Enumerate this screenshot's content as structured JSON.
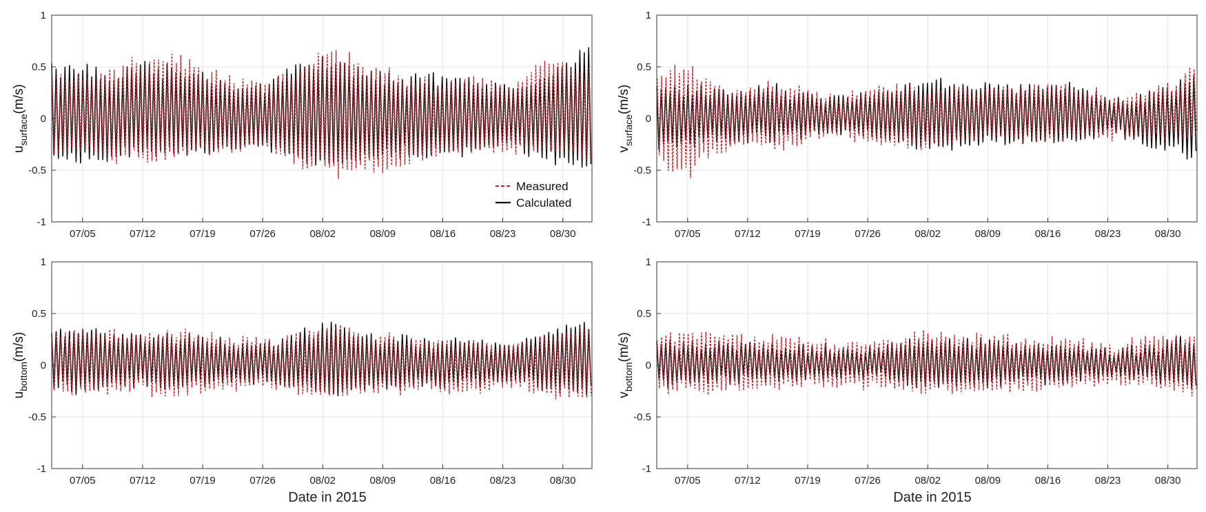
{
  "colors": {
    "measured": "#c0242a",
    "calculated": "#111111",
    "grid": "#e3e3e3",
    "axis": "#333333"
  },
  "chart_data": [
    {
      "id": "u_surface",
      "type": "line",
      "ylabel_main": "u",
      "ylabel_sub": "surface",
      "ylabel_unit": "(m/s)",
      "xlabel": "",
      "ylim": [
        -1,
        1
      ],
      "yticks": [
        "1",
        "0.5",
        "0",
        "-0.5",
        "-1"
      ],
      "xticks": [
        "07/05",
        "07/12",
        "07/19",
        "07/26",
        "08/02",
        "08/09",
        "08/16",
        "08/23",
        "08/30"
      ],
      "x_start_day": 0.4,
      "x_end_day": 63.4,
      "envelope_calculated": [
        [
          0,
          0.52,
          -0.37
        ],
        [
          4,
          0.55,
          -0.45
        ],
        [
          8,
          0.45,
          -0.4
        ],
        [
          11,
          0.55,
          -0.35
        ],
        [
          15,
          0.52,
          -0.38
        ],
        [
          19,
          0.42,
          -0.35
        ],
        [
          25,
          0.3,
          -0.3
        ],
        [
          29,
          0.52,
          -0.4
        ],
        [
          33,
          0.62,
          -0.5
        ],
        [
          37,
          0.45,
          -0.42
        ],
        [
          42,
          0.42,
          -0.35
        ],
        [
          46,
          0.45,
          -0.35
        ],
        [
          50,
          0.38,
          -0.32
        ],
        [
          54,
          0.32,
          -0.25
        ],
        [
          58,
          0.45,
          -0.42
        ],
        [
          63,
          0.68,
          -0.48
        ]
      ],
      "envelope_measured": [
        [
          0,
          0.45,
          -0.35
        ],
        [
          4,
          0.42,
          -0.35
        ],
        [
          8,
          0.5,
          -0.42
        ],
        [
          11,
          0.6,
          -0.4
        ],
        [
          15,
          0.65,
          -0.4
        ],
        [
          19,
          0.45,
          -0.35
        ],
        [
          25,
          0.35,
          -0.3
        ],
        [
          29,
          0.5,
          -0.45
        ],
        [
          33,
          0.68,
          -0.58
        ],
        [
          37,
          0.55,
          -0.55
        ],
        [
          42,
          0.42,
          -0.45
        ],
        [
          46,
          0.35,
          -0.35
        ],
        [
          50,
          0.4,
          -0.35
        ],
        [
          54,
          0.3,
          -0.35
        ],
        [
          58,
          0.6,
          -0.3
        ],
        [
          63,
          0.5,
          -0.45
        ]
      ],
      "legend": {
        "position": "bottom-right",
        "measured": "Measured",
        "calculated": "Calculated"
      }
    },
    {
      "id": "v_surface",
      "type": "line",
      "ylabel_main": "v",
      "ylabel_sub": "surface",
      "ylabel_unit": "(m/s)",
      "xlabel": "",
      "ylim": [
        -1,
        1
      ],
      "yticks": [
        "1",
        "0.5",
        "0",
        "-0.5",
        "-1"
      ],
      "xticks": [
        "07/05",
        "07/12",
        "07/19",
        "07/26",
        "08/02",
        "08/09",
        "08/16",
        "08/23",
        "08/30"
      ],
      "x_start_day": 0.4,
      "x_end_day": 63.4,
      "envelope_calculated": [
        [
          0,
          0.32,
          -0.3
        ],
        [
          4,
          0.3,
          -0.25
        ],
        [
          9,
          0.3,
          -0.22
        ],
        [
          15,
          0.3,
          -0.2
        ],
        [
          21,
          0.2,
          -0.12
        ],
        [
          26,
          0.28,
          -0.2
        ],
        [
          32,
          0.38,
          -0.3
        ],
        [
          38,
          0.35,
          -0.25
        ],
        [
          44,
          0.32,
          -0.22
        ],
        [
          50,
          0.32,
          -0.22
        ],
        [
          54,
          0.18,
          -0.15
        ],
        [
          58,
          0.25,
          -0.3
        ],
        [
          63,
          0.42,
          -0.38
        ]
      ],
      "envelope_measured": [
        [
          0,
          0.45,
          -0.45
        ],
        [
          4,
          0.55,
          -0.55
        ],
        [
          9,
          0.28,
          -0.28
        ],
        [
          15,
          0.35,
          -0.28
        ],
        [
          21,
          0.2,
          -0.15
        ],
        [
          26,
          0.35,
          -0.25
        ],
        [
          32,
          0.3,
          -0.3
        ],
        [
          38,
          0.3,
          -0.2
        ],
        [
          44,
          0.35,
          -0.2
        ],
        [
          50,
          0.32,
          -0.18
        ],
        [
          54,
          0.2,
          -0.18
        ],
        [
          58,
          0.28,
          -0.2
        ],
        [
          63,
          0.5,
          -0.15
        ]
      ]
    },
    {
      "id": "u_bottom",
      "type": "line",
      "ylabel_main": "u",
      "ylabel_sub": "bottom",
      "ylabel_unit": "(m/s)",
      "xlabel": "Date in 2015",
      "ylim": [
        -1,
        1
      ],
      "yticks": [
        "1",
        "0.5",
        "0",
        "-0.5",
        "-1"
      ],
      "xticks": [
        "07/05",
        "07/12",
        "07/19",
        "07/26",
        "08/02",
        "08/09",
        "08/16",
        "08/23",
        "08/30"
      ],
      "x_start_day": 0.4,
      "x_end_day": 63.4,
      "envelope_calculated": [
        [
          0,
          0.35,
          -0.22
        ],
        [
          4,
          0.42,
          -0.25
        ],
        [
          9,
          0.3,
          -0.2
        ],
        [
          14,
          0.33,
          -0.22
        ],
        [
          20,
          0.25,
          -0.18
        ],
        [
          25,
          0.2,
          -0.15
        ],
        [
          29,
          0.33,
          -0.25
        ],
        [
          33,
          0.43,
          -0.3
        ],
        [
          38,
          0.3,
          -0.25
        ],
        [
          44,
          0.25,
          -0.2
        ],
        [
          50,
          0.25,
          -0.2
        ],
        [
          54,
          0.18,
          -0.15
        ],
        [
          58,
          0.3,
          -0.25
        ],
        [
          63,
          0.45,
          -0.27
        ]
      ],
      "envelope_measured": [
        [
          0,
          0.3,
          -0.25
        ],
        [
          4,
          0.35,
          -0.28
        ],
        [
          9,
          0.3,
          -0.25
        ],
        [
          14,
          0.35,
          -0.28
        ],
        [
          20,
          0.3,
          -0.25
        ],
        [
          25,
          0.25,
          -0.2
        ],
        [
          29,
          0.3,
          -0.28
        ],
        [
          33,
          0.4,
          -0.32
        ],
        [
          38,
          0.3,
          -0.28
        ],
        [
          44,
          0.25,
          -0.25
        ],
        [
          50,
          0.25,
          -0.25
        ],
        [
          54,
          0.22,
          -0.2
        ],
        [
          58,
          0.3,
          -0.3
        ],
        [
          63,
          0.38,
          -0.35
        ]
      ]
    },
    {
      "id": "v_bottom",
      "type": "line",
      "ylabel_main": "v",
      "ylabel_sub": "bottom",
      "ylabel_unit": "(m/s)",
      "xlabel": "Date in 2015",
      "ylim": [
        -1,
        1
      ],
      "yticks": [
        "1",
        "0.5",
        "0",
        "-0.5",
        "-1"
      ],
      "xticks": [
        "07/05",
        "07/12",
        "07/19",
        "07/26",
        "08/02",
        "08/09",
        "08/16",
        "08/23",
        "08/30"
      ],
      "x_start_day": 0.4,
      "x_end_day": 63.4,
      "envelope_calculated": [
        [
          0,
          0.22,
          -0.18
        ],
        [
          5,
          0.22,
          -0.18
        ],
        [
          10,
          0.2,
          -0.16
        ],
        [
          16,
          0.2,
          -0.15
        ],
        [
          21,
          0.17,
          -0.12
        ],
        [
          26,
          0.17,
          -0.12
        ],
        [
          31,
          0.25,
          -0.2
        ],
        [
          36,
          0.25,
          -0.2
        ],
        [
          42,
          0.22,
          -0.18
        ],
        [
          48,
          0.2,
          -0.15
        ],
        [
          53,
          0.15,
          -0.12
        ],
        [
          57,
          0.18,
          -0.15
        ],
        [
          63,
          0.28,
          -0.2
        ]
      ],
      "envelope_measured": [
        [
          0,
          0.3,
          -0.25
        ],
        [
          5,
          0.35,
          -0.28
        ],
        [
          10,
          0.28,
          -0.25
        ],
        [
          16,
          0.28,
          -0.22
        ],
        [
          21,
          0.22,
          -0.2
        ],
        [
          26,
          0.25,
          -0.2
        ],
        [
          31,
          0.32,
          -0.28
        ],
        [
          36,
          0.3,
          -0.28
        ],
        [
          42,
          0.28,
          -0.25
        ],
        [
          48,
          0.25,
          -0.22
        ],
        [
          53,
          0.2,
          -0.18
        ],
        [
          57,
          0.25,
          -0.2
        ],
        [
          63,
          0.3,
          -0.28
        ]
      ]
    }
  ]
}
